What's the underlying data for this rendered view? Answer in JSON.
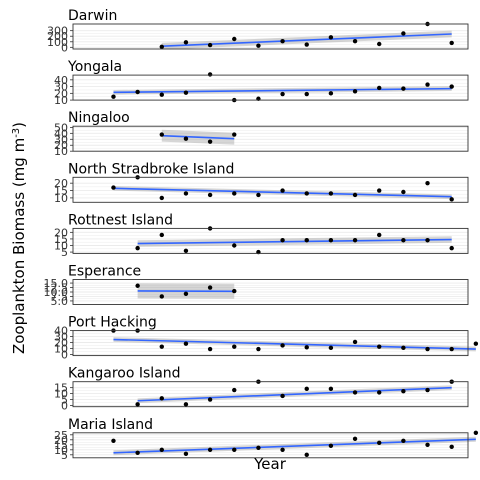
{
  "chart_data": {
    "type": "scatter",
    "title": "",
    "xlabel": "Year",
    "ylabel": "Zooplankton Biomass (mg m",
    "ylabel_sup": "-3",
    "ylabel_close": ")",
    "x_index_range": [
      0,
      15
    ],
    "facets": [
      {
        "name": "Darwin",
        "ylim": [
          -30,
          420
        ],
        "ticks": [
          0,
          100,
          200,
          300
        ],
        "tick_labels": [
          "0",
          "100",
          "200",
          "300"
        ],
        "x": [
          3,
          4,
          5,
          6,
          7,
          8,
          9,
          10,
          11,
          12,
          13,
          14,
          15
        ],
        "y": [
          10,
          90,
          40,
          150,
          30,
          110,
          50,
          180,
          110,
          60,
          250,
          420,
          80
        ],
        "fit": {
          "x0": 3,
          "x1": 15,
          "y0": 20,
          "y1": 240,
          "band": 60
        }
      },
      {
        "name": "Yongala",
        "ylim": [
          10,
          47
        ],
        "ticks": [
          10,
          20,
          30,
          40
        ],
        "tick_labels": [
          "10",
          "20",
          "30",
          "40"
        ],
        "x": [
          1,
          2,
          3,
          4,
          5,
          6,
          7,
          8,
          9,
          10,
          11,
          12,
          13,
          14,
          15
        ],
        "y": [
          15,
          22,
          18,
          21,
          48,
          10,
          12,
          19,
          19,
          20,
          23,
          28,
          27,
          33,
          30
        ],
        "fit": {
          "x0": 1,
          "x1": 15,
          "y0": 21.5,
          "y1": 27,
          "band": 3.5
        }
      },
      {
        "name": "Ningaloo",
        "ylim": [
          10,
          52
        ],
        "ticks": [
          10,
          20,
          30,
          40,
          50
        ],
        "tick_labels": [
          "10",
          "20",
          "30",
          "40",
          "50"
        ],
        "x": [
          3,
          4,
          5,
          6
        ],
        "y": [
          38,
          31,
          26,
          38
        ],
        "fit": {
          "x0": 3,
          "x1": 6,
          "y0": 36,
          "y1": 31,
          "band": 10
        }
      },
      {
        "name": "North Stradbroke Island",
        "ylim": [
          7,
          24
        ],
        "ticks": [
          10,
          15,
          20
        ],
        "tick_labels": [
          "10",
          "15",
          "20"
        ],
        "x": [
          1,
          2,
          3,
          4,
          5,
          6,
          7,
          8,
          9,
          10,
          11,
          12,
          13,
          14,
          15
        ],
        "y": [
          17,
          24,
          10,
          13,
          12,
          13,
          12,
          15,
          13,
          13,
          12,
          15,
          14,
          20,
          9
        ],
        "fit": {
          "x0": 1,
          "x1": 15,
          "y0": 16.5,
          "y1": 10.8,
          "band": 1.6
        }
      },
      {
        "name": "Rottnest Island",
        "ylim": [
          4,
          23
        ],
        "ticks": [
          5,
          10,
          15,
          20
        ],
        "tick_labels": [
          "5",
          "10",
          "15",
          "20"
        ],
        "x": [
          2,
          3,
          4,
          5,
          6,
          7,
          8,
          9,
          10,
          11,
          12,
          13,
          14,
          15
        ],
        "y": [
          8,
          18,
          6,
          23,
          10,
          5,
          14,
          14,
          14,
          14,
          18,
          14,
          14,
          8
        ],
        "fit": {
          "x0": 2,
          "x1": 15,
          "y0": 11.5,
          "y1": 14.5,
          "band": 2.5
        }
      },
      {
        "name": "Esperance",
        "ylim": [
          3,
          17
        ],
        "ticks": [
          5.0,
          7.5,
          10.0,
          12.5,
          15.0
        ],
        "tick_labels": [
          "5.0",
          "7.5",
          "10.0",
          "12.5",
          "15.0"
        ],
        "x": [
          2,
          3,
          4,
          5,
          6
        ],
        "y": [
          13.5,
          7.5,
          9,
          12.5,
          10.5
        ],
        "fit": {
          "x0": 2,
          "x1": 6,
          "y0": 10.6,
          "y1": 10.4,
          "band": 4.2
        }
      },
      {
        "name": "Port Hacking",
        "ylim": [
          -2,
          40
        ],
        "ticks": [
          0,
          10,
          20,
          30,
          40
        ],
        "tick_labels": [
          "0",
          "10",
          "20",
          "30",
          "40"
        ],
        "x": [
          1,
          2,
          3,
          4,
          5,
          6,
          7,
          8,
          9,
          10,
          11,
          12,
          13,
          14,
          15,
          16
        ],
        "y": [
          40,
          40,
          13,
          18,
          9,
          13,
          9,
          15,
          12,
          11,
          21,
          13,
          11,
          9,
          9,
          18
        ],
        "fit": {
          "x0": 1,
          "x1": 16,
          "y0": 25,
          "y1": 9,
          "band": 4
        }
      },
      {
        "name": "Kangaroo Island",
        "ylim": [
          -1,
          20
        ],
        "ticks": [
          0,
          5,
          10,
          15
        ],
        "tick_labels": [
          "0",
          "5",
          "10",
          "15"
        ],
        "x": [
          2,
          3,
          4,
          5,
          6,
          7,
          8,
          9,
          10,
          11,
          12,
          13,
          14,
          15
        ],
        "y": [
          1,
          6,
          1,
          5,
          13,
          20,
          8,
          14,
          14,
          11,
          11,
          12,
          13,
          20
        ],
        "fit": {
          "x0": 2,
          "x1": 15,
          "y0": 4,
          "y1": 15,
          "band": 2
        }
      },
      {
        "name": "Maria Island",
        "ylim": [
          2,
          27
        ],
        "ticks": [
          5,
          10,
          15,
          20,
          25
        ],
        "tick_labels": [
          "5",
          "10",
          "15",
          "20",
          "25"
        ],
        "x": [
          1,
          2,
          3,
          4,
          5,
          6,
          7,
          8,
          9,
          10,
          11,
          12,
          13,
          14,
          15,
          16
        ],
        "y": [
          19,
          7,
          10,
          6,
          10,
          10,
          12,
          10,
          5,
          14,
          21,
          17,
          19,
          15,
          13,
          27
        ],
        "fit": {
          "x0": 1,
          "x1": 16,
          "y0": 7,
          "y1": 20.5,
          "band": 2.5
        }
      }
    ]
  },
  "colors": {
    "fit_line": "#3366ff",
    "ci_band": "#999999",
    "point": "#000000",
    "panel_border": "#333333",
    "grid": "#ebebeb"
  }
}
